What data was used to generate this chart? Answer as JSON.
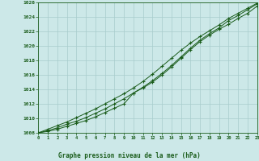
{
  "title": "Graphe pression niveau de la mer (hPa)",
  "background_color": "#cce8e8",
  "grid_color": "#a8cccc",
  "line_color": "#1a5c1a",
  "xlim": [
    0,
    23
  ],
  "ylim": [
    1008,
    1026
  ],
  "xticks": [
    0,
    1,
    2,
    3,
    4,
    5,
    6,
    7,
    8,
    9,
    10,
    11,
    12,
    13,
    14,
    15,
    16,
    17,
    18,
    19,
    20,
    21,
    22,
    23
  ],
  "yticks": [
    1008,
    1010,
    1012,
    1014,
    1016,
    1018,
    1020,
    1022,
    1024,
    1026
  ],
  "hours": [
    0,
    1,
    2,
    3,
    4,
    5,
    6,
    7,
    8,
    9,
    10,
    11,
    12,
    13,
    14,
    15,
    16,
    17,
    18,
    19,
    20,
    21,
    22,
    23
  ],
  "line1": [
    1008.0,
    1008.2,
    1008.5,
    1008.9,
    1009.3,
    1009.7,
    1010.2,
    1010.8,
    1011.4,
    1012.0,
    1013.5,
    1014.2,
    1015.0,
    1016.0,
    1017.1,
    1018.3,
    1019.5,
    1020.6,
    1021.5,
    1022.3,
    1023.0,
    1023.8,
    1024.5,
    1025.5
  ],
  "line2": [
    1008.0,
    1008.3,
    1008.7,
    1009.2,
    1009.6,
    1010.1,
    1010.7,
    1011.3,
    1012.0,
    1012.7,
    1013.5,
    1014.3,
    1015.2,
    1016.2,
    1017.3,
    1018.5,
    1019.7,
    1020.8,
    1021.7,
    1022.5,
    1023.5,
    1024.2,
    1025.0,
    1025.8
  ],
  "line3": [
    1008.0,
    1008.5,
    1009.0,
    1009.5,
    1010.1,
    1010.7,
    1011.3,
    1012.0,
    1012.7,
    1013.4,
    1014.2,
    1015.1,
    1016.1,
    1017.2,
    1018.3,
    1019.4,
    1020.4,
    1021.3,
    1022.1,
    1022.9,
    1023.8,
    1024.5,
    1025.2,
    1025.9
  ]
}
